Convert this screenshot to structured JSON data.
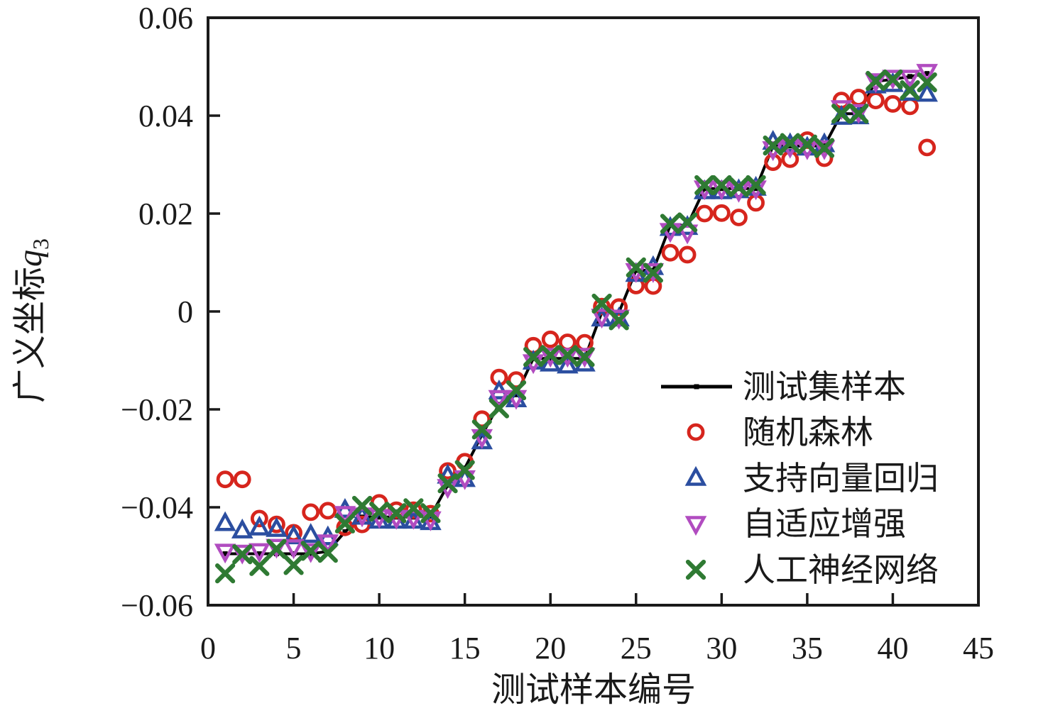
{
  "chart_data": {
    "type": "line+scatter",
    "title": "",
    "xlabel": "测试样本编号",
    "ylabel": {
      "text": "广义坐标",
      "var": "q",
      "sub": "3"
    },
    "xlim": [
      0,
      45
    ],
    "ylim": [
      -0.06,
      0.06
    ],
    "xticks": [
      0,
      5,
      10,
      15,
      20,
      25,
      30,
      35,
      40,
      45
    ],
    "xtick_labels": [
      "0",
      "5",
      "10",
      "15",
      "20",
      "25",
      "30",
      "35",
      "40",
      "45"
    ],
    "yticks": [
      0.06,
      0.04,
      0.02,
      0,
      -0.02,
      -0.04,
      -0.06
    ],
    "ytick_labels": [
      "0.06",
      "0.04",
      "0.02",
      "0",
      "−0.02",
      "−0.04",
      "−0.06"
    ],
    "grid": false,
    "legend_position": "right-middle",
    "x": [
      1,
      2,
      3,
      4,
      5,
      6,
      7,
      8,
      9,
      10,
      11,
      12,
      13,
      14,
      15,
      16,
      17,
      18,
      19,
      20,
      21,
      22,
      23,
      24,
      25,
      26,
      27,
      28,
      29,
      30,
      31,
      32,
      33,
      34,
      35,
      36,
      37,
      38,
      39,
      40,
      41,
      42
    ],
    "series": [
      {
        "name": "测试集样本",
        "key": "test-set-line",
        "type": "line",
        "marker": "square",
        "color": "#000000",
        "values": [
          -0.0495,
          -0.0495,
          -0.0495,
          -0.0495,
          -0.0495,
          -0.0495,
          -0.049,
          -0.045,
          -0.042,
          -0.042,
          -0.042,
          -0.042,
          -0.0418,
          -0.0355,
          -0.032,
          -0.0252,
          -0.019,
          -0.017,
          -0.0096,
          -0.0096,
          -0.0096,
          -0.0096,
          -0.0002,
          -0.0002,
          0.0084,
          0.0084,
          0.0176,
          0.0176,
          0.0251,
          0.0251,
          0.0251,
          0.0251,
          0.0338,
          0.0338,
          0.0338,
          0.0338,
          0.0404,
          0.0404,
          0.047,
          0.0474,
          0.048,
          0.0486
        ]
      },
      {
        "name": "随机森林",
        "key": "random-forest",
        "type": "scatter",
        "marker": "circle",
        "color": "#d6251d",
        "values": [
          -0.0343,
          -0.0343,
          -0.0423,
          -0.0435,
          -0.0452,
          -0.041,
          -0.0407,
          -0.0441,
          -0.0435,
          -0.0391,
          -0.0406,
          -0.0406,
          -0.0413,
          -0.0326,
          -0.0307,
          -0.022,
          -0.0135,
          -0.014,
          -0.007,
          -0.0057,
          -0.0063,
          -0.0064,
          0.001,
          0.0009,
          0.0053,
          0.0052,
          0.012,
          0.0116,
          0.02,
          0.0201,
          0.0192,
          0.0222,
          0.0305,
          0.0311,
          0.035,
          0.0313,
          0.0431,
          0.0437,
          0.0431,
          0.0424,
          0.0419,
          0.0335
        ]
      },
      {
        "name": "支持向量回归",
        "key": "support-vector-regression",
        "type": "scatter",
        "marker": "triangle-up",
        "color": "#2b4ea0",
        "values": [
          -0.0433,
          -0.0448,
          -0.0442,
          -0.0445,
          -0.046,
          -0.0457,
          -0.0462,
          -0.0406,
          -0.042,
          -0.0428,
          -0.0428,
          -0.0428,
          -0.0431,
          -0.0336,
          -0.0343,
          -0.0266,
          -0.0164,
          -0.018,
          -0.0103,
          -0.0107,
          -0.0111,
          -0.0107,
          -0.0015,
          -0.0015,
          0.0076,
          0.009,
          0.017,
          0.0172,
          0.0245,
          0.0245,
          0.0247,
          0.0252,
          0.0346,
          0.0341,
          0.0334,
          0.0341,
          0.0397,
          0.0398,
          0.0461,
          0.0464,
          0.0446,
          0.0444
        ]
      },
      {
        "name": "自适应增强",
        "key": "adaboost",
        "type": "scatter",
        "marker": "triangle-down",
        "color": "#b14cc0",
        "values": [
          -0.049,
          -0.0492,
          -0.0489,
          -0.048,
          -0.0481,
          -0.0489,
          -0.0471,
          -0.0413,
          -0.0416,
          -0.0419,
          -0.0421,
          -0.0421,
          -0.0424,
          -0.0358,
          -0.034,
          -0.0256,
          -0.0176,
          -0.0176,
          -0.0103,
          -0.009,
          -0.009,
          -0.009,
          -0.001,
          -0.0012,
          0.0083,
          0.0083,
          0.0165,
          0.0162,
          0.0252,
          0.0252,
          0.0247,
          0.0252,
          0.0332,
          0.0337,
          0.0334,
          0.0334,
          0.0416,
          0.0408,
          0.0471,
          0.0478,
          0.0478,
          0.049
        ]
      },
      {
        "name": "人工神经网络",
        "key": "artificial-neural-network",
        "type": "scatter",
        "marker": "x",
        "color": "#2f7a33",
        "values": [
          -0.0535,
          -0.0496,
          -0.052,
          -0.0485,
          -0.0518,
          -0.0489,
          -0.0493,
          -0.0433,
          -0.0397,
          -0.0409,
          -0.0412,
          -0.0402,
          -0.0412,
          -0.0351,
          -0.0324,
          -0.0241,
          -0.0198,
          -0.0161,
          -0.0093,
          -0.0089,
          -0.0089,
          -0.0093,
          0.0016,
          -0.0018,
          0.009,
          0.0079,
          0.0179,
          0.0182,
          0.0258,
          0.0258,
          0.0254,
          0.0258,
          0.0339,
          0.0344,
          0.0341,
          0.0334,
          0.0404,
          0.0404,
          0.0471,
          0.0474,
          0.0452,
          0.0468
        ]
      }
    ]
  }
}
